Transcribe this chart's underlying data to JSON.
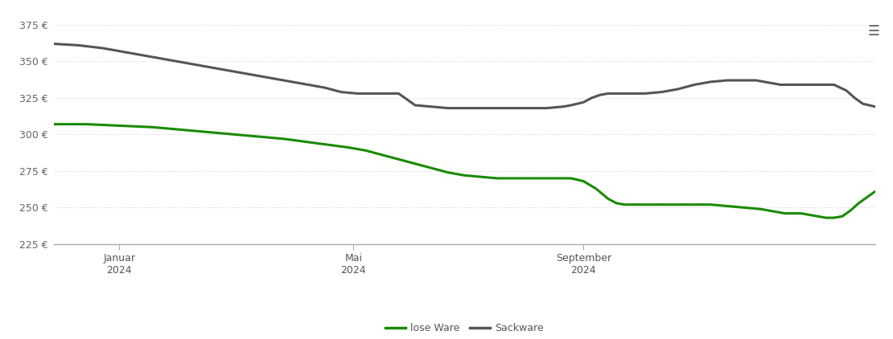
{
  "title": "",
  "xlabel": "",
  "ylabel": "",
  "ylim": [
    225,
    385
  ],
  "yticks": [
    225,
    250,
    275,
    300,
    325,
    350,
    375
  ],
  "xtick_labels": [
    [
      "Januar\n2024",
      0.08
    ],
    [
      "Mai\n2024",
      0.365
    ],
    [
      "September\n2024",
      0.645
    ]
  ],
  "background_color": "#ffffff",
  "grid_color": "#cccccc",
  "line_color_lose": "#1a8a00",
  "line_color_sack": "#555555",
  "line_width": 2.2,
  "legend_labels": [
    "lose Ware",
    "Sackware"
  ],
  "lose_ware": [
    0.0,
    307,
    0.04,
    307,
    0.08,
    306,
    0.12,
    305,
    0.16,
    303,
    0.2,
    301,
    0.24,
    299,
    0.28,
    297,
    0.32,
    294,
    0.36,
    291,
    0.38,
    289,
    0.4,
    286,
    0.42,
    283,
    0.44,
    280,
    0.46,
    277,
    0.48,
    274,
    0.5,
    272,
    0.52,
    271,
    0.54,
    270,
    0.56,
    270,
    0.58,
    270,
    0.6,
    270,
    0.62,
    270,
    0.63,
    270,
    0.645,
    268,
    0.66,
    263,
    0.675,
    256,
    0.685,
    253,
    0.695,
    252,
    0.72,
    252,
    0.74,
    252,
    0.76,
    252,
    0.78,
    252,
    0.8,
    252,
    0.82,
    251,
    0.84,
    250,
    0.86,
    249,
    0.87,
    248,
    0.88,
    247,
    0.89,
    246,
    0.9,
    246,
    0.91,
    246,
    0.92,
    245,
    0.93,
    244,
    0.94,
    243,
    0.95,
    243,
    0.96,
    244,
    0.97,
    248,
    0.98,
    253,
    0.99,
    257,
    1.0,
    261
  ],
  "sackware": [
    0.0,
    362,
    0.03,
    361,
    0.06,
    359,
    0.09,
    356,
    0.12,
    353,
    0.15,
    350,
    0.18,
    347,
    0.21,
    344,
    0.24,
    341,
    0.27,
    338,
    0.3,
    335,
    0.33,
    332,
    0.35,
    329,
    0.37,
    328,
    0.4,
    328,
    0.42,
    328,
    0.44,
    320,
    0.46,
    319,
    0.48,
    318,
    0.5,
    318,
    0.52,
    318,
    0.54,
    318,
    0.56,
    318,
    0.58,
    318,
    0.6,
    318,
    0.62,
    319,
    0.63,
    320,
    0.645,
    322,
    0.655,
    325,
    0.665,
    327,
    0.675,
    328,
    0.7,
    328,
    0.72,
    328,
    0.74,
    329,
    0.76,
    331,
    0.78,
    334,
    0.8,
    336,
    0.82,
    337,
    0.84,
    337,
    0.855,
    337,
    0.865,
    336,
    0.875,
    335,
    0.885,
    334,
    0.895,
    334,
    0.91,
    334,
    0.92,
    334,
    0.93,
    334,
    0.94,
    334,
    0.95,
    334,
    0.965,
    330,
    0.975,
    325,
    0.985,
    321,
    1.0,
    319
  ],
  "menu_icon_color": "#666666"
}
